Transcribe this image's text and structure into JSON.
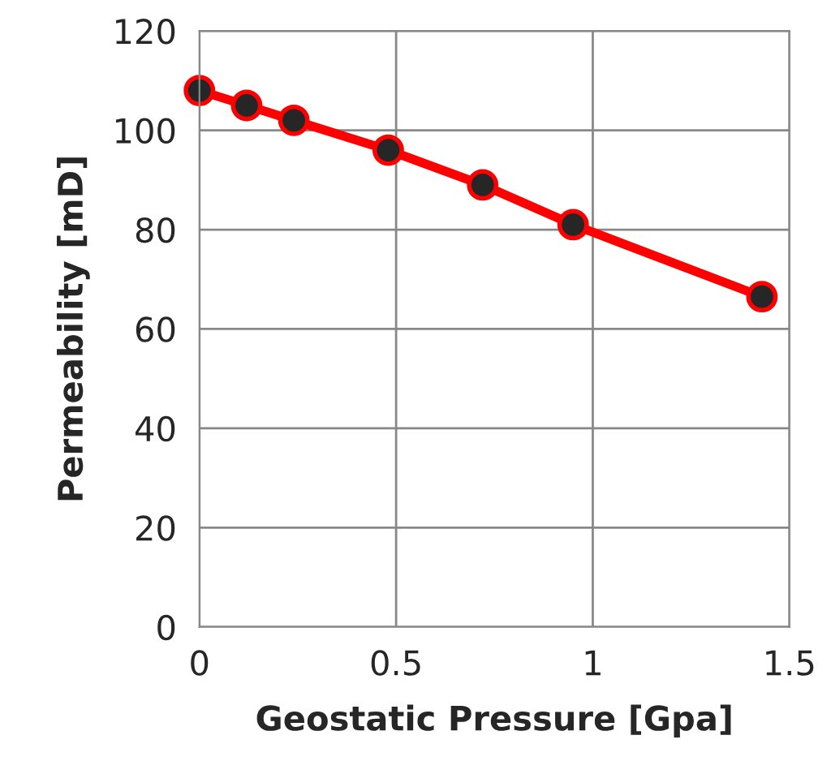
{
  "chart_data": {
    "type": "line",
    "xlabel": "Geostatic Pressure [Gpa]",
    "ylabel": "Permeability [mD]",
    "x": [
      0,
      0.12,
      0.24,
      0.48,
      0.72,
      0.95,
      1.43
    ],
    "series": [
      {
        "color": "#ff0000",
        "values": [
          108,
          105,
          102,
          96,
          89,
          81,
          66.5
        ]
      }
    ],
    "xlim": [
      0,
      1.5
    ],
    "xticks": [
      0,
      0.5,
      1,
      1.5
    ],
    "ylim": [
      0,
      120
    ],
    "yticks": [
      0,
      20,
      40,
      60,
      80,
      100,
      120
    ],
    "grid": true,
    "marker": "circle",
    "line_style": "solid"
  }
}
